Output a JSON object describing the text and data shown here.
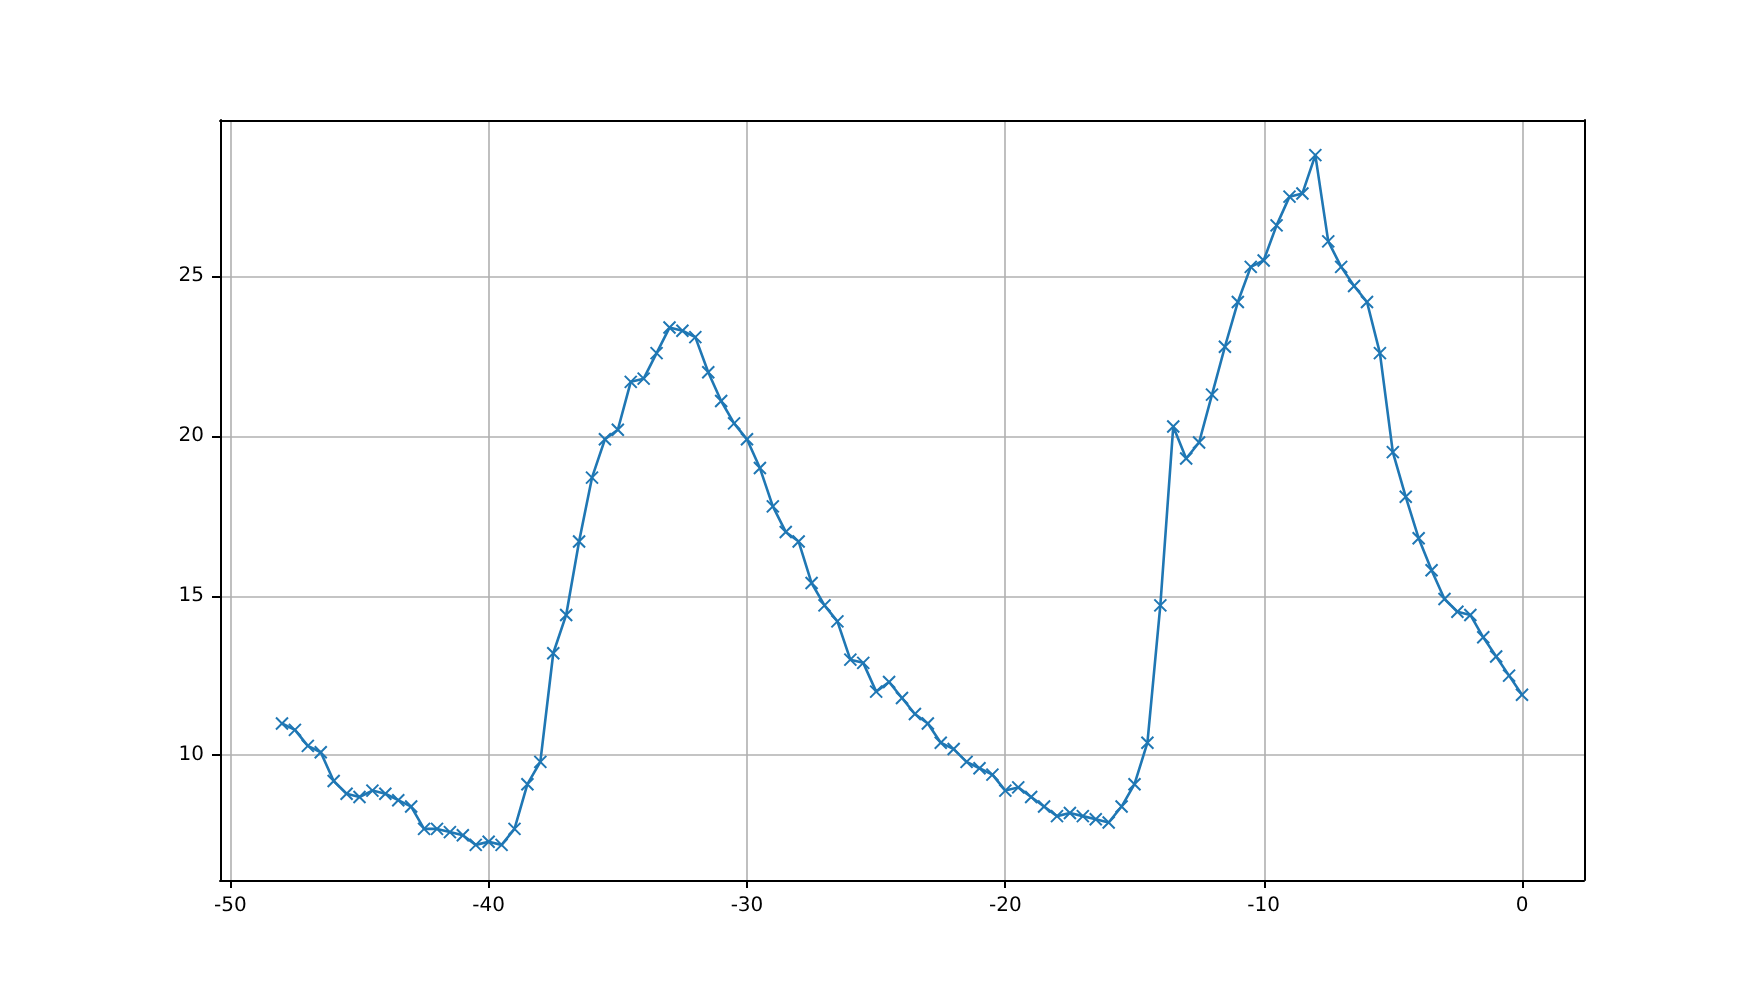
{
  "chart_data": {
    "type": "line",
    "marker": "cross",
    "grid": true,
    "line_style": "solid",
    "xlim": [
      -50.4,
      2.4
    ],
    "ylim": [
      6.1,
      29.9
    ],
    "xticks": [
      -50,
      -40,
      -30,
      -20,
      -10,
      0
    ],
    "yticks": [
      10,
      15,
      20,
      25
    ],
    "x": [
      -48,
      -47.5,
      -47,
      -46.5,
      -46,
      -45.5,
      -45,
      -44.5,
      -44,
      -43.5,
      -43,
      -42.5,
      -42,
      -41.5,
      -41,
      -40.5,
      -40,
      -39.5,
      -39,
      -38.5,
      -38,
      -37.5,
      -37,
      -36.5,
      -36,
      -35.5,
      -35,
      -34.5,
      -34,
      -33.5,
      -33,
      -32.5,
      -32,
      -31.5,
      -31,
      -30.5,
      -30,
      -29.5,
      -29,
      -28.5,
      -28,
      -27.5,
      -27,
      -26.5,
      -26,
      -25.5,
      -25,
      -24.5,
      -24,
      -23.5,
      -23,
      -22.5,
      -22,
      -21.5,
      -21,
      -20.5,
      -20,
      -19.5,
      -19,
      -18.5,
      -18,
      -17.5,
      -17,
      -16.5,
      -16,
      -15.5,
      -15,
      -14.5,
      -14,
      -13.5,
      -13,
      -12.5,
      -12,
      -11.5,
      -11,
      -10.5,
      -10,
      -9.5,
      -9,
      -8.5,
      -8,
      -7.5,
      -7,
      -6.5,
      -6,
      -5.5,
      -5,
      -4.5,
      -4,
      -3.5,
      -3,
      -2.5,
      -2,
      -1.5,
      -1,
      -0.5,
      0
    ],
    "series": [
      {
        "color": "#1f77b4",
        "values": [
          11.0,
          10.8,
          10.3,
          10.1,
          9.2,
          8.8,
          8.7,
          8.9,
          8.8,
          8.6,
          8.4,
          7.7,
          7.7,
          7.6,
          7.5,
          7.2,
          7.3,
          7.2,
          7.7,
          9.1,
          9.8,
          13.2,
          14.4,
          16.7,
          18.7,
          19.9,
          20.2,
          21.7,
          21.8,
          22.6,
          23.4,
          23.3,
          23.1,
          22.0,
          21.1,
          20.4,
          19.9,
          19.0,
          17.8,
          17.0,
          16.7,
          15.4,
          14.7,
          14.2,
          13.0,
          12.9,
          12.0,
          12.3,
          11.8,
          11.3,
          11.0,
          10.4,
          10.2,
          9.8,
          9.6,
          9.4,
          8.9,
          9.0,
          8.7,
          8.4,
          8.1,
          8.2,
          8.1,
          8.0,
          7.9,
          8.4,
          9.1,
          10.4,
          14.7,
          20.3,
          19.3,
          19.8,
          21.3,
          22.8,
          24.2,
          25.3,
          25.5,
          26.6,
          27.5,
          27.6,
          28.8,
          26.1,
          25.3,
          24.7,
          24.2,
          22.6,
          19.5,
          18.1,
          16.8,
          15.8,
          14.9,
          14.5,
          14.4,
          13.7,
          13.1,
          12.5,
          11.9
        ]
      }
    ]
  }
}
